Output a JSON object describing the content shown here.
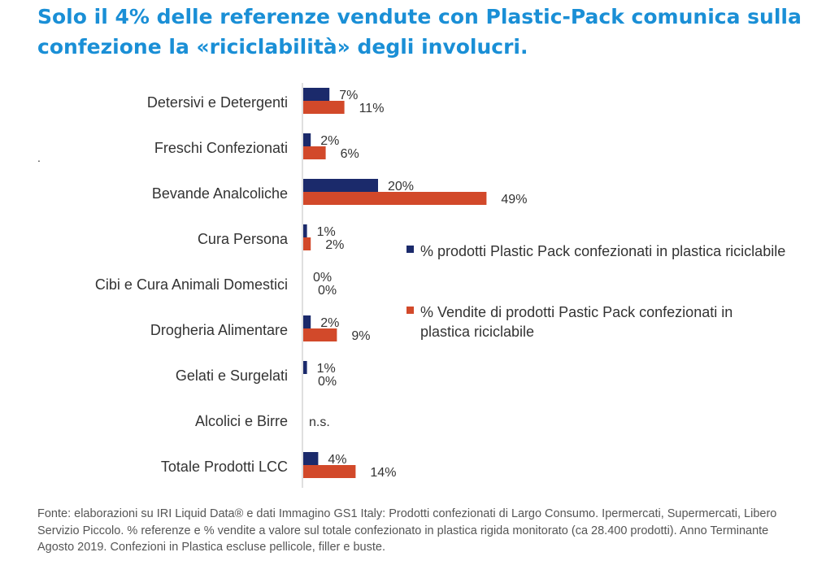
{
  "title": "Solo il 4% delle referenze vendute con Plastic-Pack comunica sulla confezione la «riciclabilità» degli involucri.",
  "stray_mark": ".",
  "colors": {
    "prodotti": "#1b2a6b",
    "vendite": "#d2492a",
    "title": "#1a8fd6"
  },
  "chart_data": {
    "type": "bar",
    "orientation": "horizontal",
    "categories": [
      "Detersivi e Detergenti",
      "Freschi Confezionati",
      "Bevande Analcoliche",
      "Cura Persona",
      "Cibi e Cura Animali Domestici",
      "Drogheria Alimentare",
      "Gelati e Surgelati",
      "Alcolici e Birre",
      "Totale Prodotti LCC"
    ],
    "series": [
      {
        "name": "% prodotti   Plastic Pack confezionati in plastica riciclabile",
        "values": [
          7,
          2,
          20,
          1,
          0,
          2,
          1,
          null,
          4
        ],
        "labels": [
          "7%",
          "2%",
          "20%",
          "1%",
          "0%",
          "2%",
          "1%",
          "",
          "4%"
        ]
      },
      {
        "name": "% Vendite di prodotti  Pastic Pack confezionati in plastica riciclabile",
        "values": [
          11,
          6,
          49,
          2,
          0,
          9,
          0,
          null,
          14
        ],
        "labels": [
          "11%",
          "6%",
          "49%",
          "2%",
          "0%",
          "9%",
          "0%",
          "",
          "14%"
        ]
      }
    ],
    "na_labels": [
      "",
      "",
      "",
      "",
      "",
      "",
      "",
      "n.s.",
      ""
    ],
    "xlim": [
      0,
      50
    ],
    "legend_position": "right"
  },
  "footer": "Fonte: elaborazioni su IRI Liquid Data® e dati Immagino GS1 Italy:  Prodotti confezionati di Largo Consumo. Ipermercati, Supermercati, Libero Servizio Piccolo. % referenze e % vendite a valore sul totale confezionato in plastica rigida monitorato (ca 28.400 prodotti). Anno Terminante Agosto 2019. Confezioni in Plastica escluse pellicole, filler e buste."
}
